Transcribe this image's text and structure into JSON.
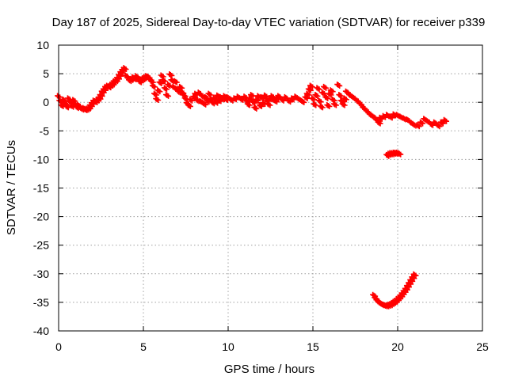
{
  "chart_data": {
    "type": "scatter",
    "title": "Day 187 of 2025, Sidereal Day-to-day VTEC variation (SDTVAR) for receiver p339",
    "xlabel": "GPS time / hours",
    "ylabel": "SDTVAR / TECUs",
    "xlim": [
      0,
      25
    ],
    "ylim": [
      -40,
      10
    ],
    "x_ticks": [
      0,
      5,
      10,
      15,
      20,
      25
    ],
    "y_ticks": [
      -40,
      -35,
      -30,
      -25,
      -20,
      -15,
      -10,
      -5,
      0,
      5,
      10
    ],
    "grid": true,
    "marker": "+",
    "series_color": "#ff0000",
    "series": [
      {
        "name": "SDTVAR",
        "points": [
          [
            0.0,
            1.0
          ],
          [
            0.1,
            0.2
          ],
          [
            0.2,
            -0.6
          ],
          [
            0.3,
            0.4
          ],
          [
            0.4,
            -0.2
          ],
          [
            0.5,
            -0.8
          ],
          [
            0.6,
            0.6
          ],
          [
            0.7,
            0.0
          ],
          [
            0.8,
            -0.7
          ],
          [
            0.9,
            0.3
          ],
          [
            1.0,
            -0.4
          ],
          [
            1.1,
            -0.9
          ],
          [
            1.2,
            -0.6
          ],
          [
            1.3,
            -1.0
          ],
          [
            1.4,
            -1.2
          ],
          [
            1.5,
            -1.1
          ],
          [
            1.6,
            -1.3
          ],
          [
            1.7,
            -1.2
          ],
          [
            1.8,
            -1.0
          ],
          [
            1.9,
            -0.6
          ],
          [
            2.0,
            -0.2
          ],
          [
            2.1,
            0.2
          ],
          [
            2.2,
            0.1
          ],
          [
            2.3,
            0.4
          ],
          [
            2.4,
            0.7
          ],
          [
            2.5,
            1.2
          ],
          [
            2.6,
            1.8
          ],
          [
            2.7,
            2.2
          ],
          [
            2.8,
            2.6
          ],
          [
            2.9,
            2.8
          ],
          [
            3.0,
            2.7
          ],
          [
            3.1,
            3.0
          ],
          [
            3.2,
            3.2
          ],
          [
            3.3,
            3.6
          ],
          [
            3.4,
            3.8
          ],
          [
            3.5,
            4.2
          ],
          [
            3.6,
            4.7
          ],
          [
            3.7,
            5.2
          ],
          [
            3.8,
            5.6
          ],
          [
            3.9,
            5.9
          ],
          [
            4.0,
            4.6
          ],
          [
            4.1,
            4.2
          ],
          [
            4.2,
            3.8
          ],
          [
            4.3,
            4.0
          ],
          [
            4.4,
            4.3
          ],
          [
            4.5,
            4.1
          ],
          [
            4.6,
            4.5
          ],
          [
            4.7,
            4.2
          ],
          [
            4.8,
            3.6
          ],
          [
            4.9,
            3.9
          ],
          [
            5.0,
            4.1
          ],
          [
            5.1,
            4.3
          ],
          [
            5.2,
            4.5
          ],
          [
            5.3,
            4.4
          ],
          [
            5.4,
            4.0
          ],
          [
            5.5,
            3.6
          ],
          [
            5.6,
            2.8
          ],
          [
            5.7,
            1.4
          ],
          [
            5.8,
            0.5
          ],
          [
            5.9,
            2.0
          ],
          [
            6.0,
            3.4
          ],
          [
            6.1,
            4.6
          ],
          [
            6.2,
            3.8
          ],
          [
            6.3,
            2.4
          ],
          [
            6.4,
            1.2
          ],
          [
            6.5,
            3.0
          ],
          [
            6.6,
            4.8
          ],
          [
            6.7,
            3.8
          ],
          [
            6.8,
            2.6
          ],
          [
            6.9,
            3.6
          ],
          [
            7.0,
            2.2
          ],
          [
            7.1,
            1.8
          ],
          [
            7.2,
            2.6
          ],
          [
            7.3,
            1.7
          ],
          [
            7.4,
            1.2
          ],
          [
            7.5,
            0.6
          ],
          [
            7.6,
            -0.2
          ],
          [
            7.7,
            -0.6
          ],
          [
            7.8,
            0.4
          ],
          [
            8.0,
            0.9
          ],
          [
            8.1,
            1.4
          ],
          [
            8.2,
            0.3
          ],
          [
            8.3,
            1.6
          ],
          [
            8.4,
            0.1
          ],
          [
            8.5,
            1.0
          ],
          [
            8.6,
            -0.3
          ],
          [
            8.7,
            0.8
          ],
          [
            8.8,
            0.2
          ],
          [
            8.9,
            1.4
          ],
          [
            9.0,
            0.5
          ],
          [
            9.1,
            -0.1
          ],
          [
            9.2,
            0.7
          ],
          [
            9.3,
            0.0
          ],
          [
            9.4,
            1.1
          ],
          [
            9.5,
            0.3
          ],
          [
            9.6,
            0.8
          ],
          [
            9.7,
            0.6
          ],
          [
            9.8,
            1.0
          ],
          [
            9.9,
            0.5
          ],
          [
            10.0,
            0.8
          ],
          [
            10.2,
            0.4
          ],
          [
            10.4,
            0.6
          ],
          [
            10.6,
            0.9
          ],
          [
            10.8,
            0.5
          ],
          [
            11.0,
            0.9
          ],
          [
            11.1,
            0.2
          ],
          [
            11.2,
            -0.4
          ],
          [
            11.3,
            0.6
          ],
          [
            11.4,
            1.2
          ],
          [
            11.5,
            0.0
          ],
          [
            11.6,
            -1.0
          ],
          [
            11.7,
            0.4
          ],
          [
            11.8,
            1.0
          ],
          [
            11.9,
            -0.6
          ],
          [
            12.0,
            0.8
          ],
          [
            12.1,
            -0.2
          ],
          [
            12.2,
            1.1
          ],
          [
            12.3,
            0.3
          ],
          [
            12.4,
            -0.4
          ],
          [
            12.5,
            0.6
          ],
          [
            12.6,
            1.0
          ],
          [
            12.7,
            0.4
          ],
          [
            12.8,
            0.2
          ],
          [
            12.9,
            0.7
          ],
          [
            13.0,
            1.0
          ],
          [
            13.2,
            0.4
          ],
          [
            13.4,
            0.8
          ],
          [
            13.6,
            0.2
          ],
          [
            13.8,
            0.6
          ],
          [
            14.0,
            0.9
          ],
          [
            14.2,
            0.5
          ],
          [
            14.4,
            0.1
          ],
          [
            14.6,
            0.8
          ],
          [
            14.7,
            1.4
          ],
          [
            14.8,
            2.2
          ],
          [
            14.9,
            2.8
          ],
          [
            15.0,
            0.6
          ],
          [
            15.1,
            -0.4
          ],
          [
            15.2,
            1.2
          ],
          [
            15.3,
            2.4
          ],
          [
            15.4,
            0.2
          ],
          [
            15.5,
            -0.8
          ],
          [
            15.6,
            1.6
          ],
          [
            15.7,
            2.6
          ],
          [
            15.8,
            0.8
          ],
          [
            15.9,
            -0.6
          ],
          [
            16.0,
            1.4
          ],
          [
            16.1,
            2.0
          ],
          [
            16.2,
            0.4
          ],
          [
            16.3,
            -0.4
          ],
          [
            16.5,
            3.0
          ],
          [
            16.6,
            1.2
          ],
          [
            16.7,
            0.2
          ],
          [
            16.8,
            -0.4
          ],
          [
            16.9,
            0.6
          ],
          [
            17.0,
            1.8
          ],
          [
            17.2,
            1.2
          ],
          [
            17.4,
            0.8
          ],
          [
            17.6,
            0.3
          ],
          [
            17.8,
            -0.3
          ],
          [
            18.0,
            -1.0
          ],
          [
            18.2,
            -1.6
          ],
          [
            18.4,
            -2.2
          ],
          [
            18.6,
            -2.6
          ],
          [
            18.8,
            -3.2
          ],
          [
            18.9,
            -3.6
          ],
          [
            19.0,
            -2.8
          ],
          [
            19.2,
            -2.5
          ],
          [
            19.4,
            -2.3
          ],
          [
            19.6,
            -2.6
          ],
          [
            19.8,
            -2.2
          ],
          [
            20.0,
            -2.3
          ],
          [
            20.2,
            -2.6
          ],
          [
            20.4,
            -2.9
          ],
          [
            20.6,
            -3.1
          ],
          [
            20.8,
            -3.6
          ],
          [
            21.0,
            -4.0
          ],
          [
            21.2,
            -4.1
          ],
          [
            21.4,
            -3.6
          ],
          [
            21.6,
            -3.0
          ],
          [
            21.8,
            -3.4
          ],
          [
            22.0,
            -3.9
          ],
          [
            22.2,
            -3.6
          ],
          [
            22.4,
            -4.1
          ],
          [
            22.6,
            -3.6
          ],
          [
            22.8,
            -3.2
          ],
          [
            19.4,
            -9.3
          ],
          [
            19.5,
            -9.1
          ],
          [
            19.6,
            -9.0
          ],
          [
            19.7,
            -9.0
          ],
          [
            19.8,
            -8.9
          ],
          [
            19.9,
            -8.9
          ],
          [
            20.0,
            -8.9
          ],
          [
            20.1,
            -9.0
          ],
          [
            18.6,
            -33.8
          ],
          [
            18.7,
            -34.3
          ],
          [
            18.8,
            -34.7
          ],
          [
            18.9,
            -35.0
          ],
          [
            19.0,
            -35.2
          ],
          [
            19.1,
            -35.4
          ],
          [
            19.2,
            -35.5
          ],
          [
            19.3,
            -35.6
          ],
          [
            19.4,
            -35.6
          ],
          [
            19.5,
            -35.5
          ],
          [
            19.6,
            -35.4
          ],
          [
            19.7,
            -35.2
          ],
          [
            19.8,
            -35.0
          ],
          [
            19.9,
            -34.8
          ],
          [
            20.0,
            -34.5
          ],
          [
            20.1,
            -34.2
          ],
          [
            20.2,
            -33.9
          ],
          [
            20.3,
            -33.5
          ],
          [
            20.4,
            -33.1
          ],
          [
            20.5,
            -32.7
          ],
          [
            20.6,
            -32.2
          ],
          [
            20.7,
            -31.7
          ],
          [
            20.8,
            -31.2
          ],
          [
            20.9,
            -30.7
          ],
          [
            21.0,
            -30.2
          ]
        ]
      }
    ]
  }
}
